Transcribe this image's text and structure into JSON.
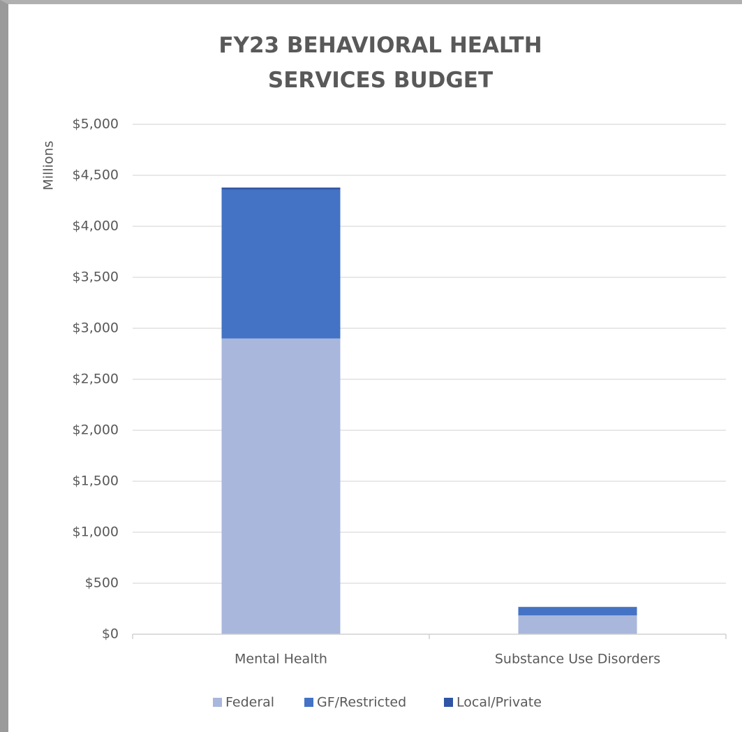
{
  "chart_data": {
    "type": "stacked_bar",
    "title": "FY23 BEHAVIORAL HEALTH SERVICES BUDGET",
    "y_label": "Millions",
    "categories": [
      "Mental Health",
      "Substance Use Disorders"
    ],
    "series": [
      {
        "name": "Federal",
        "color": "#a9b7dc",
        "values": [
          2900,
          185
        ]
      },
      {
        "name": "GF/Restricted",
        "color": "#4472c4",
        "values": [
          1460,
          80
        ]
      },
      {
        "name": "Local/Private",
        "color": "#2f55a4",
        "values": [
          20,
          3
        ]
      }
    ],
    "ylim": [
      0,
      5000
    ],
    "yticks": [
      {
        "value": 0,
        "label": "$0"
      },
      {
        "value": 500,
        "label": "$500"
      },
      {
        "value": 1000,
        "label": "$1,000"
      },
      {
        "value": 1500,
        "label": "$1,500"
      },
      {
        "value": 2000,
        "label": "$2,000"
      },
      {
        "value": 2500,
        "label": "$2,500"
      },
      {
        "value": 3000,
        "label": "$3,000"
      },
      {
        "value": 3500,
        "label": "$3,500"
      },
      {
        "value": 4000,
        "label": "$4,000"
      },
      {
        "value": 4500,
        "label": "$4,500"
      },
      {
        "value": 5000,
        "label": "$5,000"
      }
    ],
    "grid": true,
    "legend": "bottom"
  }
}
